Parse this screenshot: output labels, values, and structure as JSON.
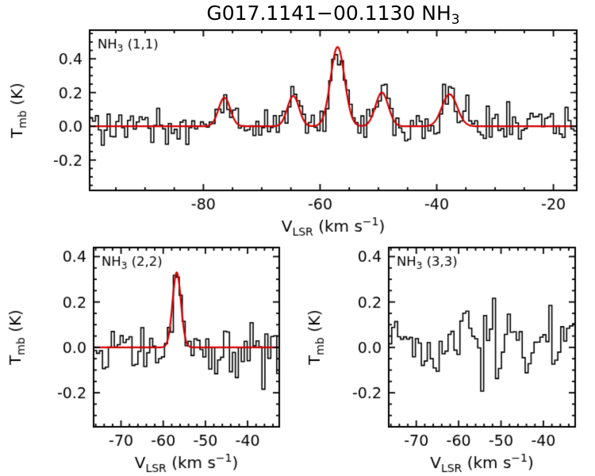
{
  "figure_title": {
    "main": "G017.1141−00.1130 NH",
    "sub": "3"
  },
  "colors": {
    "background": "#ffffff",
    "axis": "#000000",
    "histogram": "#000000",
    "fit": "#d40000"
  },
  "chart_data": [
    {
      "id": "nh3-11",
      "type": "line",
      "panel_label": [
        {
          "t": "NH"
        },
        {
          "t": "3",
          "sub": true
        },
        {
          "t": " (1,1)"
        }
      ],
      "xlabel": [
        {
          "t": "V"
        },
        {
          "t": "LSR",
          "sub": true
        },
        {
          "t": " (km s"
        },
        {
          "t": "−1",
          "sup": true
        },
        {
          "t": ")"
        }
      ],
      "ylabel": [
        {
          "t": "T"
        },
        {
          "t": "mb",
          "sub": true
        },
        {
          "t": " (K)"
        }
      ],
      "xlim": [
        -99.5,
        -16.0
      ],
      "ylim": [
        -0.38,
        0.57
      ],
      "xticks": {
        "values": [
          -80,
          -60,
          -40,
          -20
        ],
        "labels": [
          "-80",
          "-60",
          "-40",
          "-20"
        ],
        "minor": 5
      },
      "yticks": {
        "values": [
          -0.2,
          0,
          0.2,
          0.4
        ],
        "labels": [
          "-0.2",
          "0.0",
          "0.2",
          "0.4"
        ],
        "minor": 0.05
      },
      "channel_width": 0.5,
      "noise_sigma": 0.055,
      "model_components": [
        {
          "center": -76.4,
          "amplitude": 0.17,
          "sigma": 1.0
        },
        {
          "center": -64.6,
          "amplitude": 0.18,
          "sigma": 1.0
        },
        {
          "center": -57.0,
          "amplitude": 0.47,
          "sigma": 1.2
        },
        {
          "center": -49.4,
          "amplitude": 0.2,
          "sigma": 1.1
        },
        {
          "center": -37.8,
          "amplitude": 0.19,
          "sigma": 1.3
        }
      ],
      "fit": {
        "show": true
      }
    },
    {
      "id": "nh3-22",
      "type": "line",
      "panel_label": [
        {
          "t": "NH"
        },
        {
          "t": "3",
          "sub": true
        },
        {
          "t": " (2,2)"
        }
      ],
      "xlabel": [
        {
          "t": "V"
        },
        {
          "t": "LSR",
          "sub": true
        },
        {
          "t": " (km s"
        },
        {
          "t": "−1",
          "sup": true
        },
        {
          "t": ")"
        }
      ],
      "ylabel": [
        {
          "t": "T"
        },
        {
          "t": "mb",
          "sub": true
        },
        {
          "t": " (K)"
        }
      ],
      "xlim": [
        -76.5,
        -32.5
      ],
      "ylim": [
        -0.35,
        0.44
      ],
      "xticks": {
        "values": [
          -70,
          -60,
          -50,
          -40
        ],
        "labels": [
          "-70",
          "-60",
          "-50",
          "-40"
        ],
        "minor": 2
      },
      "yticks": {
        "values": [
          -0.2,
          0,
          0.2,
          0.4
        ],
        "labels": [
          "-0.2",
          "0.0",
          "0.2",
          "0.4"
        ],
        "minor": 0.05
      },
      "channel_width": 0.7,
      "noise_sigma": 0.07,
      "model_components": [
        {
          "center": -56.8,
          "amplitude": 0.33,
          "sigma": 1.0
        }
      ],
      "fit": {
        "show": true
      }
    },
    {
      "id": "nh3-33",
      "type": "line",
      "panel_label": [
        {
          "t": "NH"
        },
        {
          "t": "3",
          "sub": true
        },
        {
          "t": " (3,3)"
        }
      ],
      "xlabel": [
        {
          "t": "V"
        },
        {
          "t": "LSR",
          "sub": true
        },
        {
          "t": " (km s"
        },
        {
          "t": "−1",
          "sup": true
        },
        {
          "t": ")"
        }
      ],
      "ylabel": [
        {
          "t": "T"
        },
        {
          "t": "mb",
          "sub": true
        },
        {
          "t": " (K)"
        }
      ],
      "xlim": [
        -76.5,
        -32.5
      ],
      "ylim": [
        -0.35,
        0.44
      ],
      "xticks": {
        "values": [
          -70,
          -60,
          -50,
          -40
        ],
        "labels": [
          "-70",
          "-60",
          "-50",
          "-40"
        ],
        "minor": 2
      },
      "yticks": {
        "values": [
          -0.2,
          0,
          0.2,
          0.4
        ],
        "labels": [
          "-0.2",
          "0.0",
          "0.2",
          "0.4"
        ],
        "minor": 0.05
      },
      "channel_width": 0.7,
      "noise_sigma": 0.07,
      "model_components": [
        {
          "center": -58.5,
          "amplitude": 0.1,
          "sigma": 1.8
        }
      ],
      "fit": {
        "show": false
      }
    }
  ]
}
